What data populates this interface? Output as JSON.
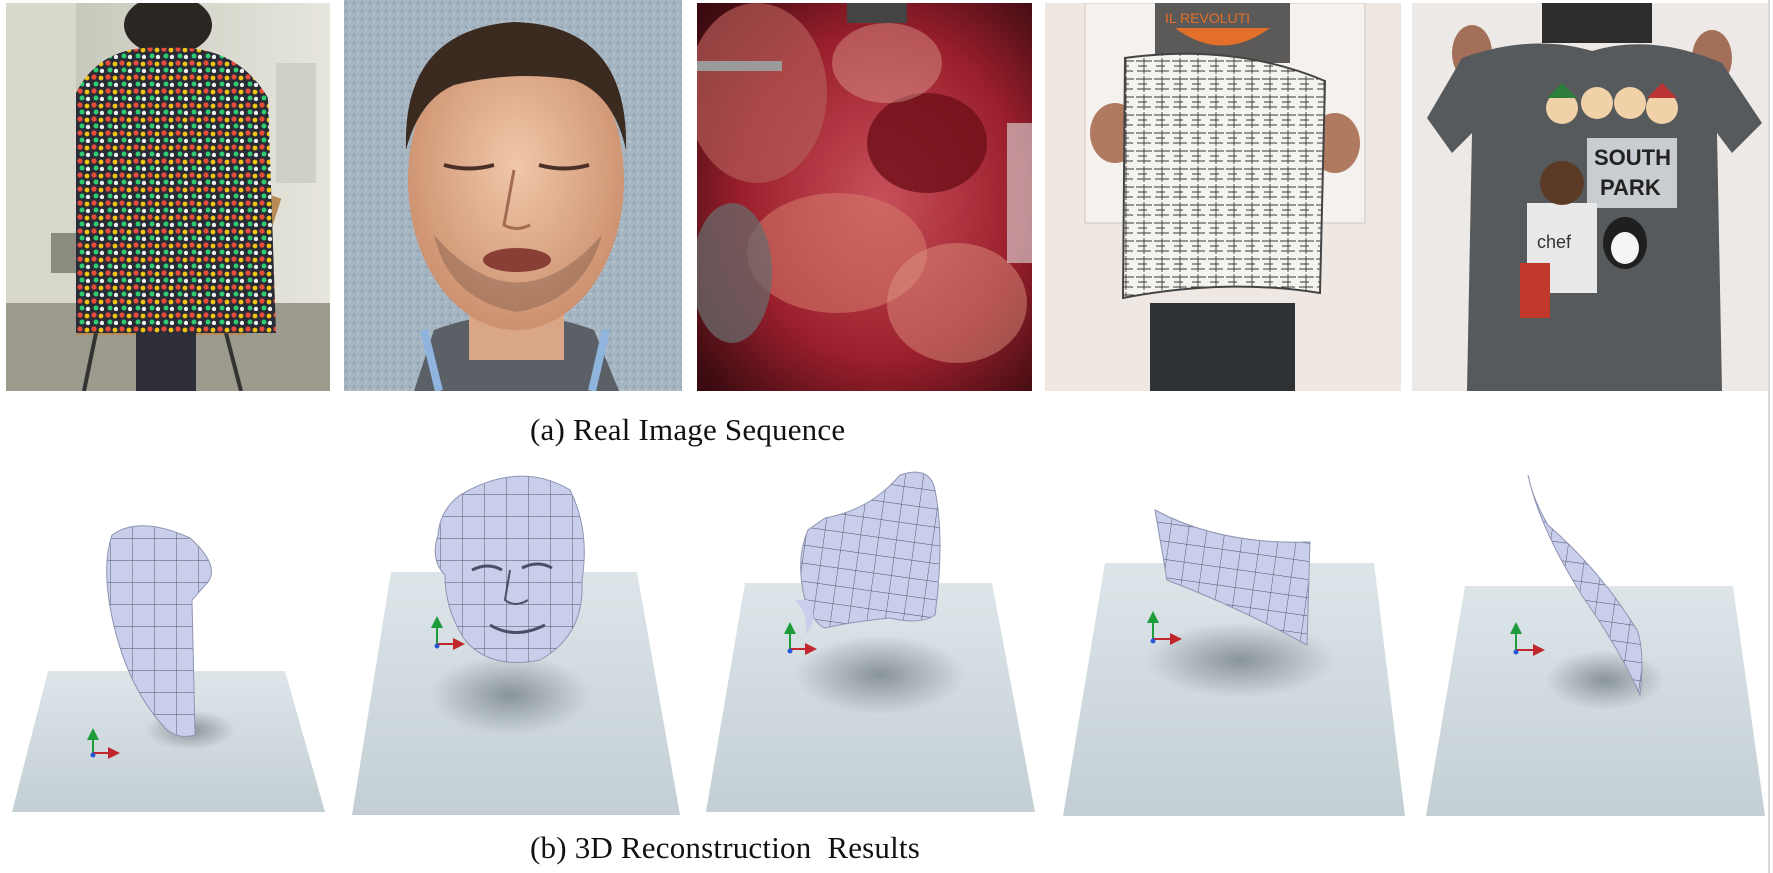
{
  "figure": {
    "caption_a": "(a) Real Image Sequence",
    "caption_b": "(b) 3D Reconstruction  Results",
    "real_images": [
      {
        "subject": "person-back-with-dotted-shirt"
      },
      {
        "subject": "face"
      },
      {
        "subject": "endoscopic-tissue"
      },
      {
        "subject": "paper-sheet"
      },
      {
        "subject": "t-shirt"
      }
    ],
    "reconstructions": [
      {
        "subject": "back-mesh"
      },
      {
        "subject": "face-mesh"
      },
      {
        "subject": "tissue-mesh"
      },
      {
        "subject": "paper-mesh"
      },
      {
        "subject": "tshirt-mesh"
      }
    ],
    "print_text": {
      "shirt_line1": "SOUTH",
      "shirt_line2": "PARK",
      "shirt_badge": "chef",
      "poster_banner": "IL REVOLUTI"
    },
    "colors": {
      "mesh": "#c7cde8",
      "mesh_grid": "#4a4f66",
      "ground": "#cdd7dc",
      "axis_x": "#c0262b",
      "axis_y": "#1e9c3a",
      "axis_z": "#2a55d6"
    }
  }
}
